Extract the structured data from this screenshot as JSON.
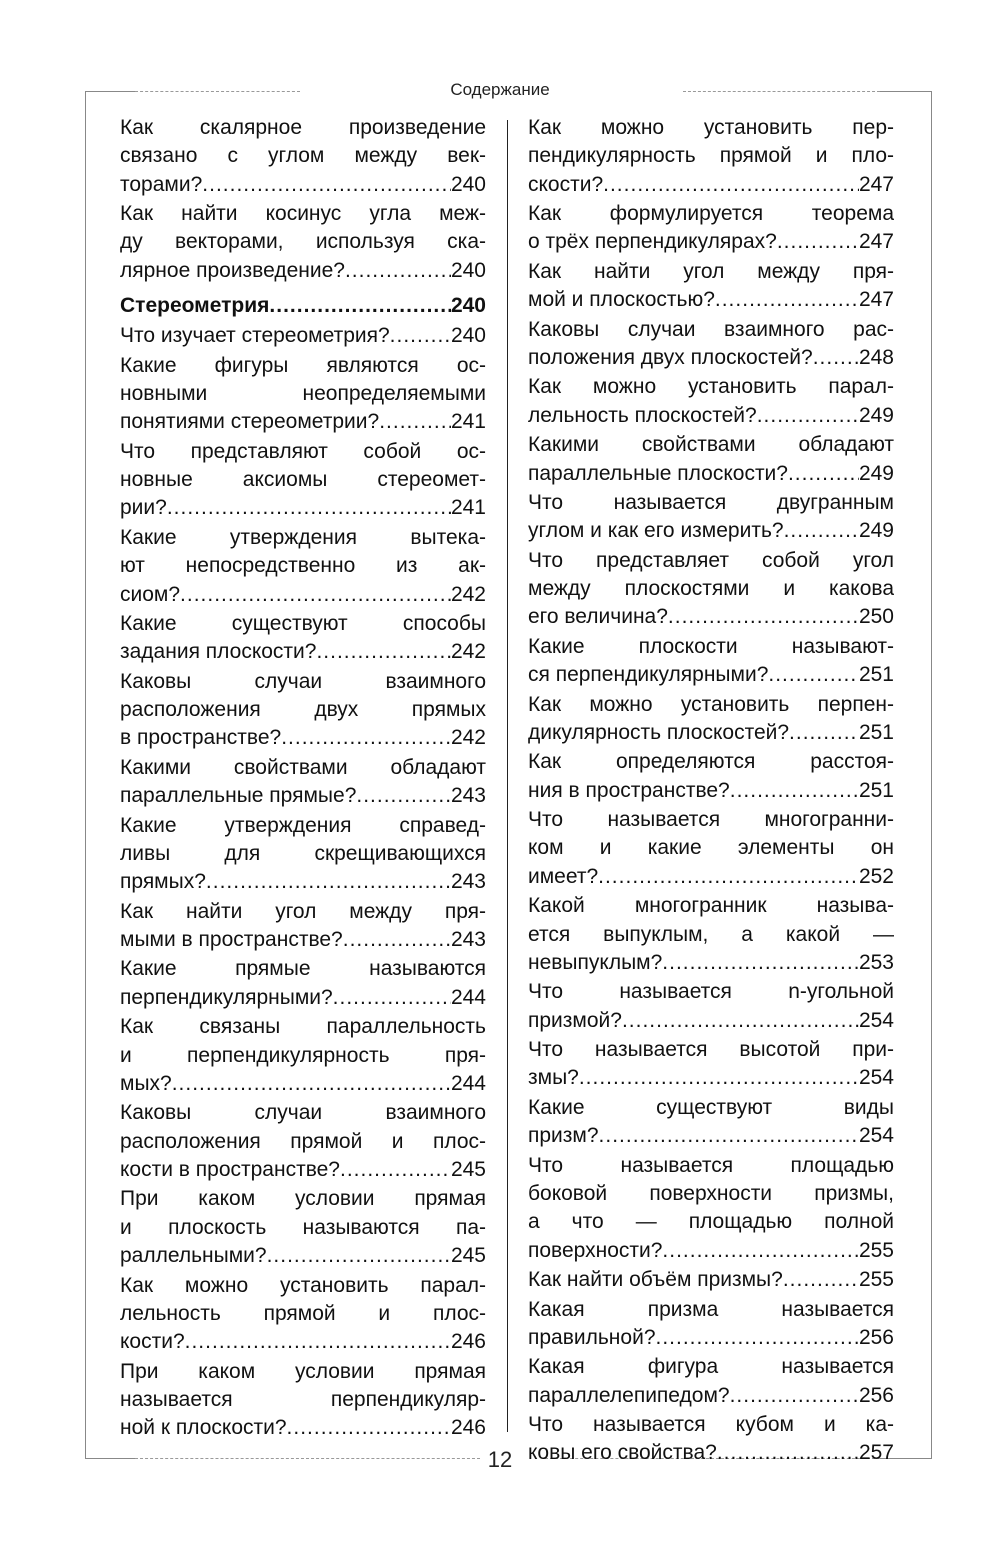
{
  "header": {
    "title": "Содержание"
  },
  "footer": {
    "page_number": "12"
  },
  "left_column": [
    {
      "lines": [
        "Как скалярное произведение",
        "связано с углом между век-"
      ],
      "last": "торами?",
      "page": "240"
    },
    {
      "lines": [
        "Как найти косинус угла меж-",
        "ду векторами, используя ска-"
      ],
      "last": "лярное произведение?",
      "page": "240"
    },
    {
      "heading": true,
      "lines": [],
      "last": "Стереометрия",
      "page": "240"
    },
    {
      "lines": [],
      "last": "Что изучает стереометрия?",
      "page": "240"
    },
    {
      "lines": [
        "Какие фигуры являются ос-",
        "новными неопределяемыми"
      ],
      "last": "понятиями стереометрии?",
      "page": "241"
    },
    {
      "lines": [
        "Что представляют собой ос-",
        "новные аксиомы стереомет-"
      ],
      "last": "рии?",
      "page": "241"
    },
    {
      "lines": [
        "Какие утверждения вытека-",
        "ют непосредственно из ак-"
      ],
      "last": "сиом?",
      "page": "242"
    },
    {
      "lines": [
        "Какие существуют способы"
      ],
      "last": "задания плоскости?",
      "page": "242"
    },
    {
      "lines": [
        "Каковы случаи взаимного",
        "расположения двух прямых"
      ],
      "last": "в пространстве?",
      "page": "242"
    },
    {
      "lines": [
        "Какими свойствами обладают"
      ],
      "last": "параллельные прямые?",
      "page": "243"
    },
    {
      "lines": [
        "Какие утверждения справед-",
        "ливы для скрещивающихся"
      ],
      "last": "прямых?",
      "page": "243"
    },
    {
      "lines": [
        "Как найти угол между пря-"
      ],
      "last": "мыми в пространстве?",
      "page": "243"
    },
    {
      "lines": [
        "Какие прямые называются"
      ],
      "last": "перпендикулярными?",
      "page": "244"
    },
    {
      "lines": [
        "Как связаны параллельность",
        "и перпендикулярность пря-"
      ],
      "last": "мых?",
      "page": "244"
    },
    {
      "lines": [
        "Каковы случаи взаимного",
        "расположения прямой и плос-"
      ],
      "last": "кости в пространстве?",
      "page": "245"
    },
    {
      "lines": [
        "При каком условии прямая",
        "и плоскость называются па-"
      ],
      "last": "раллельными?",
      "page": "245"
    },
    {
      "lines": [
        "Как можно установить парал-",
        "лельность прямой и плос-"
      ],
      "last": "кости?",
      "page": "246"
    },
    {
      "lines": [
        "При каком условии прямая",
        "называется перпендикуляр-"
      ],
      "last": "ной к плоскости?",
      "page": "246"
    }
  ],
  "right_column": [
    {
      "lines": [
        "Как можно установить пер-",
        "пендикулярность прямой и пло-"
      ],
      "last": "скости?",
      "page": "247"
    },
    {
      "lines": [
        "Как формулируется теорема"
      ],
      "last": "о трёх перпендикулярах?",
      "page": "247"
    },
    {
      "lines": [
        "Как найти угол между пря-"
      ],
      "last": "мой и плоскостью?",
      "page": "247"
    },
    {
      "lines": [
        "Каковы случаи взаимного рас-"
      ],
      "last": "положения двух плоскостей?",
      "page": "248"
    },
    {
      "lines": [
        "Как можно установить парал-"
      ],
      "last": "лельность плоскостей?",
      "page": "249"
    },
    {
      "lines": [
        "Какими свойствами обладают"
      ],
      "last": "параллельные плоскости?",
      "page": "249"
    },
    {
      "lines": [
        "Что называется двугранным"
      ],
      "last": "углом и как его измерить?",
      "page": "249"
    },
    {
      "lines": [
        "Что представляет собой угол",
        "между плоскостями и какова"
      ],
      "last": "его величина?",
      "page": "250"
    },
    {
      "lines": [
        "Какие плоскости называют-"
      ],
      "last": "ся перпендикулярными?",
      "page": "251"
    },
    {
      "lines": [
        "Как можно установить перпен-"
      ],
      "last": "дикулярность плоскостей?",
      "page": "251"
    },
    {
      "lines": [
        "Как определяются расстоя-"
      ],
      "last": "ния в пространстве?",
      "page": "251"
    },
    {
      "lines": [
        "Что называется многогранни-",
        "ком и какие элементы он"
      ],
      "last": "имеет?",
      "page": "252"
    },
    {
      "lines": [
        "Какой многогранник называ-",
        "ется выпуклым, а какой —"
      ],
      "last": "невыпуклым?",
      "page": "253"
    },
    {
      "lines": [
        "Что называется n-угольной"
      ],
      "last": "призмой?",
      "page": "254"
    },
    {
      "lines": [
        "Что называется высотой при-"
      ],
      "last": "змы?",
      "page": "254"
    },
    {
      "lines": [
        "Какие существуют виды"
      ],
      "last": "призм?",
      "page": "254"
    },
    {
      "lines": [
        "Что называется площадью",
        "боковой поверхности призмы,",
        "а что — площадью полной"
      ],
      "last": "поверхности?",
      "page": "255"
    },
    {
      "lines": [],
      "last": "Как найти объём призмы?",
      "page": "255"
    },
    {
      "lines": [
        "Какая призма называется"
      ],
      "last": "правильной?",
      "page": "256"
    },
    {
      "lines": [
        "Какая фигура называется"
      ],
      "last": "параллелепипедом?",
      "page": "256"
    },
    {
      "lines": [
        "Что называется кубом и ка-"
      ],
      "last": "ковы его свойства?",
      "page": "257"
    }
  ]
}
